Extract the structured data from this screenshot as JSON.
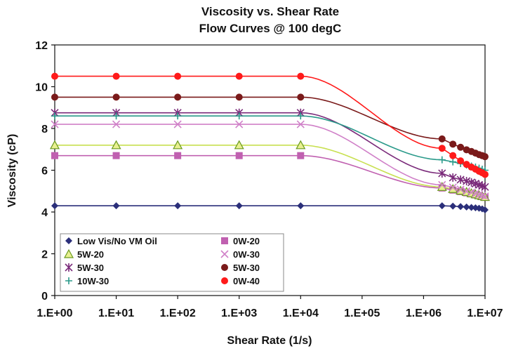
{
  "chart_data": {
    "type": "line",
    "title": "Viscosity vs. Shear Rate",
    "subtitle": "Flow Curves @ 100 degC",
    "xlabel": "Shear Rate (1/s)",
    "ylabel": "Viscosity (cP)",
    "x_scale": "log",
    "xlim": [
      1,
      10000000
    ],
    "ylim": [
      0,
      12
    ],
    "x_ticks": [
      "1.E+00",
      "1.E+01",
      "1.E+02",
      "1.E+03",
      "1.E+04",
      "1.E+05",
      "1.E+06",
      "1.E+07"
    ],
    "y_ticks": [
      "0",
      "2",
      "4",
      "6",
      "8",
      "10",
      "12"
    ],
    "grid": false,
    "legend_position": "bottom-left",
    "marker_x": [
      1,
      10,
      100,
      1000,
      10000,
      2000000,
      3000000,
      4000000,
      5000000,
      6000000,
      7000000,
      8000000,
      9000000,
      10000000
    ],
    "series": [
      {
        "name": "Low Vis/No VM Oil",
        "color": "#2b2f7a",
        "marker": "diamond",
        "values": [
          4.3,
          4.3,
          4.3,
          4.3,
          4.3,
          4.3,
          4.28,
          4.26,
          4.24,
          4.22,
          4.2,
          4.18,
          4.15,
          4.1
        ]
      },
      {
        "name": "0W-20",
        "color": "#c060b0",
        "marker": "square",
        "values": [
          6.7,
          6.7,
          6.7,
          6.7,
          6.7,
          5.15,
          5.05,
          4.98,
          4.92,
          4.87,
          4.82,
          4.78,
          4.74,
          4.7
        ]
      },
      {
        "name": "5W-20",
        "color": "#c8e050",
        "marker": "triangle",
        "values": [
          7.2,
          7.2,
          7.2,
          7.2,
          7.2,
          5.2,
          5.1,
          5.02,
          4.96,
          4.9,
          4.85,
          4.8,
          4.76,
          4.72
        ]
      },
      {
        "name": "0W-30",
        "color": "#d080c8",
        "marker": "x",
        "values": [
          8.2,
          8.2,
          8.2,
          8.2,
          8.2,
          5.3,
          5.18,
          5.08,
          5.0,
          4.94,
          4.88,
          4.83,
          4.79,
          4.75
        ]
      },
      {
        "name": "5W-30",
        "color": "#7a2a7a",
        "marker": "star",
        "values": [
          8.75,
          8.75,
          8.75,
          8.75,
          8.75,
          5.85,
          5.65,
          5.55,
          5.48,
          5.42,
          5.36,
          5.3,
          5.25,
          5.2
        ]
      },
      {
        "name": "5W-30",
        "color": "#7a1a1a",
        "marker": "circle",
        "values": [
          9.5,
          9.5,
          9.5,
          9.5,
          9.5,
          7.5,
          7.25,
          7.1,
          6.98,
          6.9,
          6.82,
          6.75,
          6.7,
          6.65
        ]
      },
      {
        "name": "10W-30",
        "color": "#2a9a8a",
        "marker": "plus",
        "values": [
          8.6,
          8.6,
          8.6,
          8.6,
          8.6,
          6.5,
          6.4,
          6.32,
          6.25,
          6.2,
          6.15,
          6.1,
          6.05,
          6.0
        ]
      },
      {
        "name": "0W-40",
        "color": "#ff1a1a",
        "marker": "circle",
        "values": [
          10.5,
          10.5,
          10.5,
          10.5,
          10.5,
          7.05,
          6.7,
          6.45,
          6.28,
          6.15,
          6.05,
          5.95,
          5.88,
          5.8
        ]
      }
    ]
  }
}
